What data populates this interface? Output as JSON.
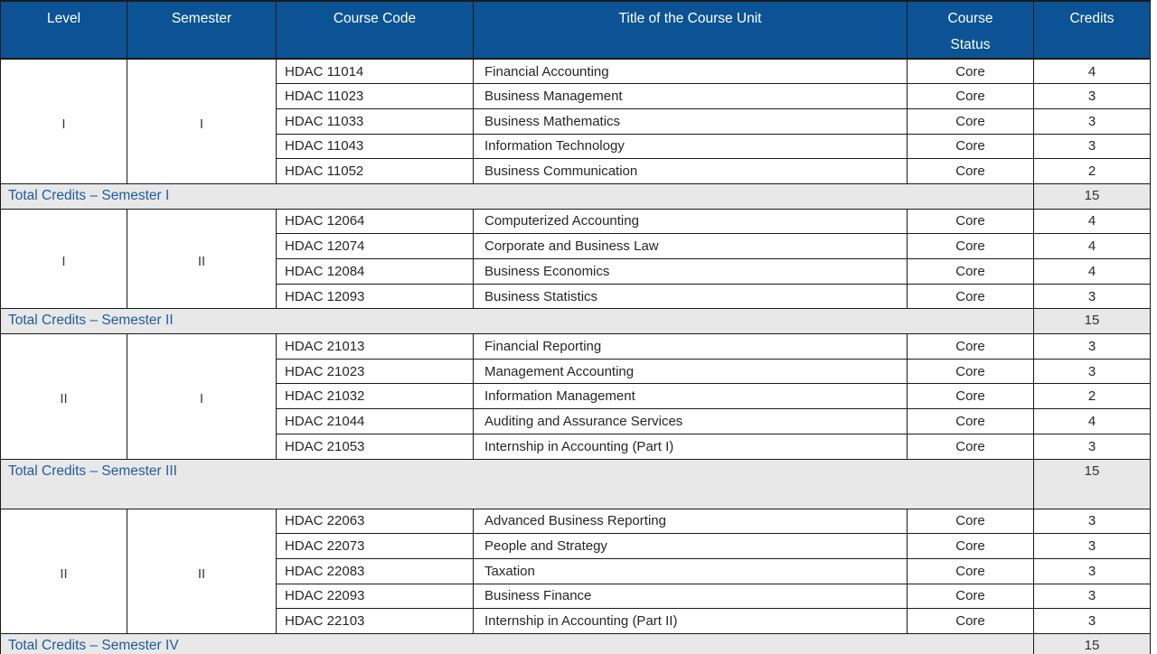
{
  "colors": {
    "header_bg": "#0B5394",
    "header_text": "#FFFFFF",
    "total_row_bg": "#E8E8E8",
    "total_label_text": "#1F5C9D",
    "body_text": "#262626",
    "border": "#1A1A1A"
  },
  "table": {
    "header": {
      "columns": [
        {
          "label": "Level",
          "lines": [
            "Level"
          ]
        },
        {
          "label": "Semester",
          "lines": [
            "Semester"
          ]
        },
        {
          "label": "Course Code",
          "lines": [
            "Course Code"
          ]
        },
        {
          "label": "Title of the Course Unit",
          "lines": [
            "Title of the Course Unit"
          ]
        },
        {
          "label": "Course Status",
          "lines": [
            "Course",
            "Status"
          ]
        },
        {
          "label": "Credits",
          "lines": [
            "Credits"
          ]
        }
      ]
    },
    "sections": [
      {
        "level": "I",
        "semester": "I",
        "courses": [
          {
            "code": "HDAC 11014",
            "title": "Financial Accounting",
            "status": "Core",
            "credits": "4"
          },
          {
            "code": "HDAC 11023",
            "title": "Business Management",
            "status": "Core",
            "credits": "3"
          },
          {
            "code": "HDAC 11033",
            "title": "Business Mathematics",
            "status": "Core",
            "credits": "3"
          },
          {
            "code": "HDAC 11043",
            "title": "Information Technology",
            "status": "Core",
            "credits": "3"
          },
          {
            "code": "HDAC 11052",
            "title": "Business Communication",
            "status": "Core",
            "credits": "2"
          }
        ],
        "total_label": "Total Credits – Semester I",
        "total_credits": "15",
        "total_tall": false
      },
      {
        "level": "I",
        "semester": "II",
        "courses": [
          {
            "code": "HDAC 12064",
            "title": "Computerized Accounting",
            "status": "Core",
            "credits": "4"
          },
          {
            "code": "HDAC 12074",
            "title": "Corporate and Business Law",
            "status": "Core",
            "credits": "4"
          },
          {
            "code": "HDAC 12084",
            "title": "Business Economics",
            "status": "Core",
            "credits": "4"
          },
          {
            "code": "HDAC 12093",
            "title": "Business Statistics",
            "status": "Core",
            "credits": "3"
          }
        ],
        "total_label": "Total Credits – Semester II",
        "total_credits": "15",
        "total_tall": false
      },
      {
        "level": "II",
        "semester": "I",
        "courses": [
          {
            "code": "HDAC 21013",
            "title": "Financial Reporting",
            "status": "Core",
            "credits": "3"
          },
          {
            "code": "HDAC 21023",
            "title": "Management Accounting",
            "status": "Core",
            "credits": "3"
          },
          {
            "code": "HDAC 21032",
            "title": "Information Management",
            "status": "Core",
            "credits": "2"
          },
          {
            "code": "HDAC 21044",
            "title": "Auditing and Assurance Services",
            "status": "Core",
            "credits": "4"
          },
          {
            "code": "HDAC 21053",
            "title": "Internship in Accounting (Part I)",
            "status": "Core",
            "credits": "3"
          }
        ],
        "total_label": "Total Credits – Semester III",
        "total_credits": "15",
        "total_tall": true
      },
      {
        "level": "II",
        "semester": "II",
        "courses": [
          {
            "code": "HDAC 22063",
            "title": "Advanced Business Reporting",
            "status": "Core",
            "credits": "3"
          },
          {
            "code": "HDAC 22073",
            "title": "People and Strategy",
            "status": "Core",
            "credits": "3"
          },
          {
            "code": "HDAC 22083",
            "title": "Taxation",
            "status": "Core",
            "credits": "3"
          },
          {
            "code": "HDAC 22093",
            "title": "Business Finance",
            "status": "Core",
            "credits": "3"
          },
          {
            "code": "HDAC 22103",
            "title": "Internship in Accounting (Part II)",
            "status": "Core",
            "credits": "3"
          }
        ],
        "total_label": "Total Credits – Semester IV",
        "total_credits": "15",
        "total_tall": false
      }
    ]
  }
}
